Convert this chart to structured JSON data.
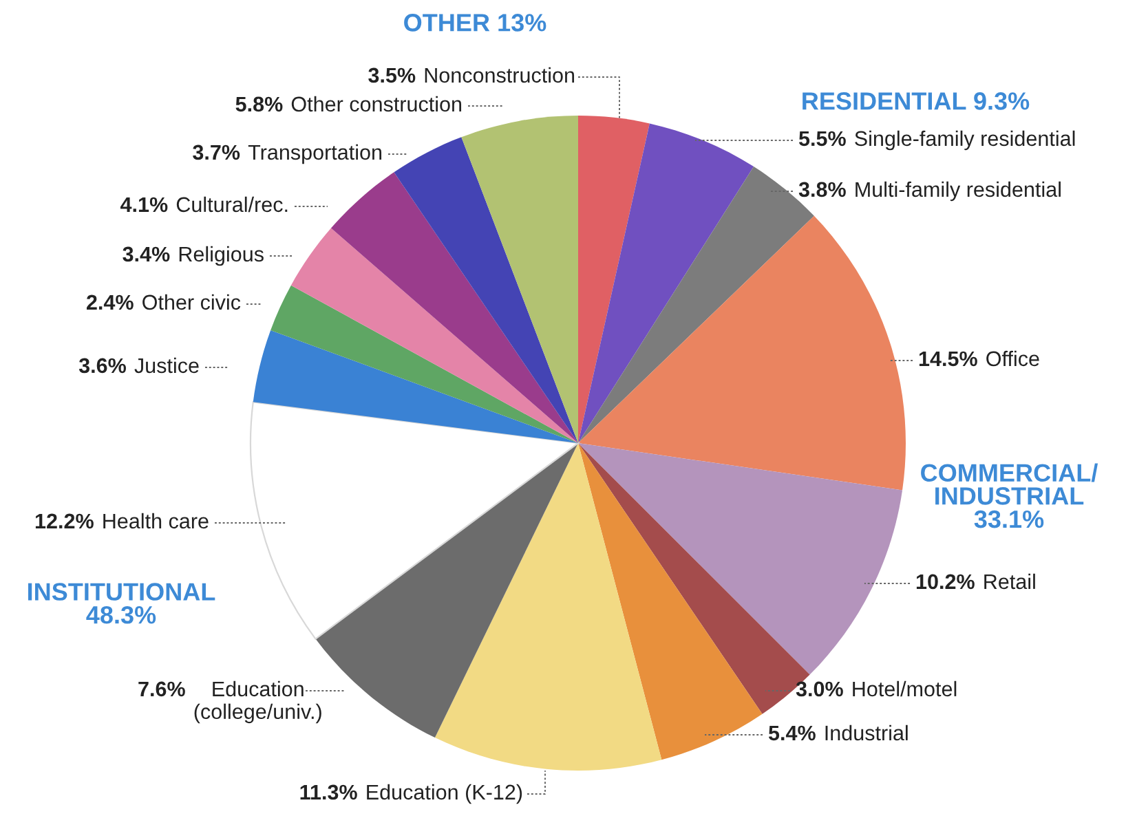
{
  "chart_data": {
    "type": "pie",
    "categories": [
      "Nonconstruction",
      "Single-family residential",
      "Multi-family residential",
      "Office",
      "Retail",
      "Hotel/motel",
      "Industrial",
      "Education (K-12)",
      "Education\n(college/univ.)",
      "Health care",
      "Justice",
      "Other civic",
      "Religious",
      "Cultural/rec.",
      "Transportation",
      "Other construction"
    ],
    "values": [
      3.5,
      5.5,
      3.8,
      14.5,
      10.2,
      3.0,
      5.4,
      11.3,
      7.6,
      12.2,
      3.6,
      2.4,
      3.4,
      4.1,
      3.7,
      5.8
    ],
    "value_labels": [
      "3.5%",
      "5.5%",
      "3.8%",
      "14.5%",
      "10.2%",
      "3.0%",
      "5.4%",
      "11.3%",
      "7.6%",
      "12.2%",
      "3.6%",
      "2.4%",
      "3.4%",
      "4.1%",
      "3.7%",
      "5.8%"
    ],
    "colors": [
      "#e06064",
      "#7050c0",
      "#7c7c7c",
      "#ea8460",
      "#b494bc",
      "#a44c4c",
      "#e8903c",
      "#f2da84",
      "#6c6c6c",
      "#ffffff",
      "#3a82d4",
      "#5fa664",
      "#e484a8",
      "#9a3c8c",
      "#4444b4",
      "#b2c272"
    ],
    "annotations": [
      "OTHER 13%",
      "RESIDENTIAL 9.3%",
      "COMMERCIAL/\nINDUSTRIAL\n33.1%",
      "INSTITUTIONAL\n48.3%"
    ]
  }
}
